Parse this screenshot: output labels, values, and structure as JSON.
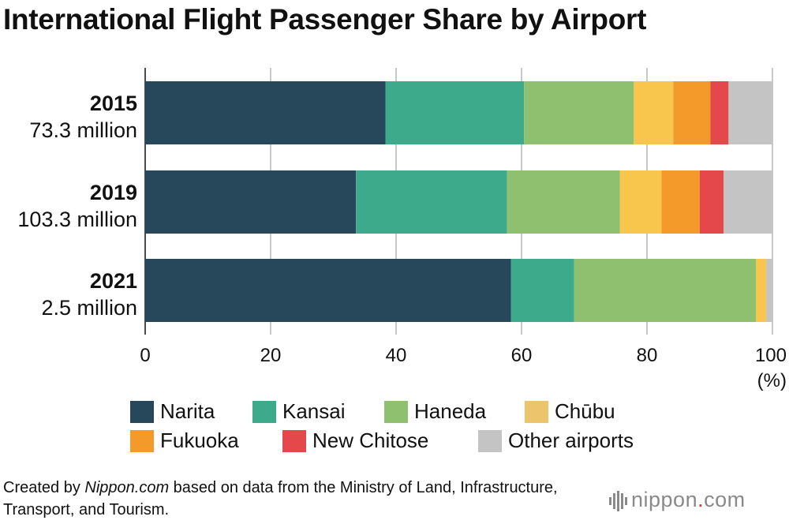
{
  "title": "International Flight Passenger Share by Airport",
  "chart_data": {
    "type": "bar",
    "orientation": "horizontal",
    "stacked": true,
    "title": "International Flight Passenger Share by Airport",
    "categories": [
      "2015",
      "2019",
      "2021"
    ],
    "category_sublabels": [
      "73.3 million",
      "103.3 million",
      "2.5 million"
    ],
    "xlim": [
      0,
      100
    ],
    "xticks": [
      0,
      20,
      40,
      60,
      80,
      100
    ],
    "xlabel": "(%)",
    "grid": true,
    "series": [
      {
        "name": "Narita",
        "color": "#27475a",
        "values": [
          38.3,
          33.6,
          58.3
        ]
      },
      {
        "name": "Kansai",
        "color": "#3dab8b",
        "values": [
          22.1,
          24.1,
          10.1
        ]
      },
      {
        "name": "Haneda",
        "color": "#8fc06f",
        "values": [
          17.5,
          18.0,
          29.0
        ]
      },
      {
        "name": "Chūbu",
        "color": "#f8c64d",
        "values": [
          6.3,
          6.6,
          1.6
        ]
      },
      {
        "name": "Fukuoka",
        "color": "#f39a2b",
        "values": [
          5.9,
          6.1,
          0.0
        ]
      },
      {
        "name": "New Chitose",
        "color": "#e5484a",
        "values": [
          2.9,
          3.8,
          0.0
        ]
      },
      {
        "name": "Other airports",
        "color": "#c4c4c4",
        "values": [
          7.0,
          7.8,
          1.0
        ]
      }
    ]
  },
  "legend": {
    "placement": "bottom",
    "chubu_swatch_color": "#ebc46b"
  },
  "footer": {
    "prefix": "Created by ",
    "source_name": "Nippon.com",
    "suffix": " based on data from the Ministry of Land, Infrastructure, Transport, and Tourism."
  },
  "logo": {
    "word": "nippon",
    "dot": ".",
    "domain": "com",
    "color": "#8a8a8a",
    "accent": "#e0302e"
  }
}
